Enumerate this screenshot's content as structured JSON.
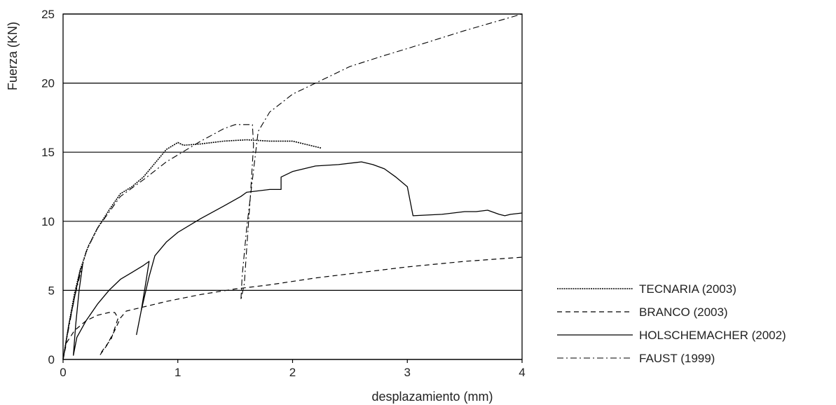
{
  "chart_data": {
    "type": "line",
    "xlabel": "desplazamiento  (mm)",
    "ylabel": "Fuerza  (KN)",
    "xlim": [
      0,
      4
    ],
    "ylim": [
      0,
      25
    ],
    "x_ticks": [
      0,
      1,
      2,
      3,
      4
    ],
    "y_ticks": [
      0,
      5,
      10,
      15,
      20,
      25
    ],
    "grid": "horizontal",
    "legend_position": "right",
    "series": [
      {
        "name": "TECNARIA (2003)",
        "style": "dotted-solid",
        "points": [
          [
            0,
            0
          ],
          [
            0.05,
            2.5
          ],
          [
            0.1,
            4.8
          ],
          [
            0.15,
            6.5
          ],
          [
            0.22,
            8.2
          ],
          [
            0.3,
            9.5
          ],
          [
            0.4,
            10.8
          ],
          [
            0.5,
            12
          ],
          [
            0.6,
            12.5
          ],
          [
            0.7,
            13.2
          ],
          [
            0.8,
            14.2
          ],
          [
            0.9,
            15.2
          ],
          [
            1.0,
            15.7
          ],
          [
            1.05,
            15.5
          ],
          [
            1.2,
            15.6
          ],
          [
            1.4,
            15.8
          ],
          [
            1.6,
            15.9
          ],
          [
            1.8,
            15.8
          ],
          [
            2.0,
            15.8
          ],
          [
            2.1,
            15.6
          ],
          [
            2.25,
            15.3
          ]
        ]
      },
      {
        "name": "BRANCO (2003)",
        "style": "dashed",
        "points": [
          [
            0,
            0
          ],
          [
            0.03,
            1.2
          ],
          [
            0.1,
            2.1
          ],
          [
            0.2,
            2.8
          ],
          [
            0.3,
            3.2
          ],
          [
            0.4,
            3.4
          ],
          [
            0.45,
            3.4
          ],
          [
            0.48,
            3.0
          ],
          [
            0.42,
            1.5
          ],
          [
            0.34,
            0.6
          ],
          [
            0.32,
            0.3
          ],
          [
            0.38,
            1.0
          ],
          [
            0.45,
            2.1
          ],
          [
            0.5,
            3.0
          ],
          [
            0.55,
            3.5
          ],
          [
            0.7,
            3.8
          ],
          [
            0.9,
            4.2
          ],
          [
            1.2,
            4.7
          ],
          [
            1.5,
            5.1
          ],
          [
            1.8,
            5.4
          ],
          [
            2.2,
            5.9
          ],
          [
            2.6,
            6.3
          ],
          [
            3.0,
            6.7
          ],
          [
            3.5,
            7.1
          ],
          [
            4.0,
            7.4
          ]
        ]
      },
      {
        "name": "HOLSCHEMACHER (2002)",
        "style": "solid",
        "points": [
          [
            0,
            0
          ],
          [
            0.05,
            2.5
          ],
          [
            0.1,
            4.5
          ],
          [
            0.15,
            6.5
          ],
          [
            0.17,
            6.8
          ],
          [
            0.14,
            5.0
          ],
          [
            0.11,
            2.5
          ],
          [
            0.09,
            0.3
          ],
          [
            0.12,
            1.6
          ],
          [
            0.2,
            2.8
          ],
          [
            0.3,
            4.0
          ],
          [
            0.4,
            5.0
          ],
          [
            0.5,
            5.8
          ],
          [
            0.6,
            6.3
          ],
          [
            0.7,
            6.8
          ],
          [
            0.75,
            7.1
          ],
          [
            0.72,
            5.5
          ],
          [
            0.68,
            3.5
          ],
          [
            0.64,
            1.8
          ],
          [
            0.68,
            3.5
          ],
          [
            0.75,
            6.0
          ],
          [
            0.8,
            7.5
          ],
          [
            0.9,
            8.5
          ],
          [
            1.0,
            9.2
          ],
          [
            1.2,
            10.2
          ],
          [
            1.4,
            11.1
          ],
          [
            1.55,
            11.8
          ],
          [
            1.6,
            12.1
          ],
          [
            1.8,
            12.3
          ],
          [
            1.9,
            12.3
          ],
          [
            1.9,
            13.2
          ],
          [
            2.0,
            13.6
          ],
          [
            2.2,
            14.0
          ],
          [
            2.4,
            14.1
          ],
          [
            2.6,
            14.3
          ],
          [
            2.7,
            14.1
          ],
          [
            2.8,
            13.8
          ],
          [
            2.9,
            13.2
          ],
          [
            3.0,
            12.5
          ],
          [
            3.05,
            10.4
          ],
          [
            3.3,
            10.5
          ],
          [
            3.5,
            10.7
          ],
          [
            3.6,
            10.7
          ],
          [
            3.7,
            10.8
          ],
          [
            3.8,
            10.5
          ],
          [
            3.85,
            10.4
          ],
          [
            3.9,
            10.5
          ],
          [
            4.0,
            10.6
          ]
        ]
      },
      {
        "name": "FAUST (1999)",
        "style": "dash-dot",
        "points": [
          [
            0,
            0
          ],
          [
            0.05,
            2.3
          ],
          [
            0.1,
            4.5
          ],
          [
            0.15,
            6.2
          ],
          [
            0.2,
            7.8
          ],
          [
            0.3,
            9.5
          ],
          [
            0.5,
            11.8
          ],
          [
            0.7,
            13.0
          ],
          [
            0.9,
            14.3
          ],
          [
            1.0,
            14.8
          ],
          [
            1.2,
            15.8
          ],
          [
            1.4,
            16.7
          ],
          [
            1.5,
            17.0
          ],
          [
            1.65,
            17.0
          ],
          [
            1.66,
            15.5
          ],
          [
            1.63,
            11.5
          ],
          [
            1.6,
            8.0
          ],
          [
            1.58,
            5.5
          ],
          [
            1.55,
            4.3
          ],
          [
            1.56,
            6.0
          ],
          [
            1.6,
            9.5
          ],
          [
            1.65,
            13.0
          ],
          [
            1.7,
            16.5
          ],
          [
            1.8,
            17.9
          ],
          [
            2.0,
            19.2
          ],
          [
            2.2,
            20.0
          ],
          [
            2.5,
            21.2
          ],
          [
            2.8,
            22.0
          ],
          [
            3.0,
            22.5
          ],
          [
            3.5,
            23.8
          ],
          [
            4.0,
            25.0
          ]
        ]
      }
    ]
  }
}
